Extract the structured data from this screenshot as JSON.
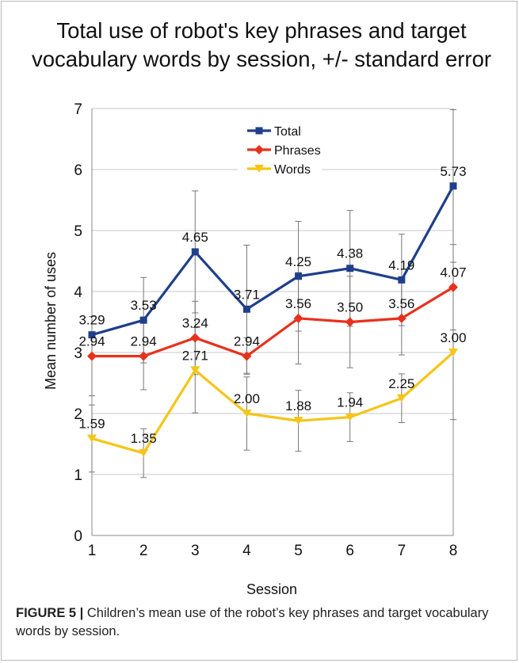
{
  "chart_data": {
    "type": "line",
    "title_lines": [
      "Total use of robot's key phrases and target",
      "vocabulary words by session, +/- standard error"
    ],
    "xlabel": "Session",
    "ylabel": "Mean number of uses",
    "x": [
      1,
      2,
      3,
      4,
      5,
      6,
      7,
      8
    ],
    "ylim": [
      0,
      7
    ],
    "yticks": [
      0,
      1,
      2,
      3,
      4,
      5,
      6,
      7
    ],
    "grid": true,
    "legend_position": "top-center",
    "series": [
      {
        "name": "Total",
        "color": "#1f3f8a",
        "marker": "square",
        "values": [
          3.29,
          3.53,
          4.65,
          3.71,
          4.25,
          4.38,
          4.19,
          5.73
        ],
        "labels": [
          "3.29",
          "3.53",
          "4.65",
          "3.71",
          "4.25",
          "4.38",
          "4.19",
          "5.73"
        ],
        "error": [
          null,
          0.7,
          1.0,
          1.05,
          0.9,
          0.95,
          0.75,
          1.25
        ]
      },
      {
        "name": "Phrases",
        "color": "#e8311d",
        "marker": "diamond",
        "values": [
          2.94,
          2.94,
          3.24,
          2.94,
          3.56,
          3.5,
          3.56,
          4.07
        ],
        "labels": [
          "2.94",
          "2.94",
          "3.24",
          "2.94",
          "3.56",
          "3.50",
          "3.56",
          "4.07"
        ],
        "error": [
          0.65,
          0.55,
          0.6,
          0.3,
          0.75,
          0.75,
          0.6,
          0.7
        ]
      },
      {
        "name": "Words",
        "color": "#f5c518",
        "marker": "triangle",
        "values": [
          1.59,
          1.35,
          2.71,
          2.0,
          1.88,
          1.94,
          2.25,
          3.0
        ],
        "labels": [
          "1.59",
          "1.35",
          "2.71",
          "2.00",
          "1.88",
          "1.94",
          "2.25",
          "3.00"
        ],
        "error": [
          0.55,
          0.4,
          0.7,
          0.6,
          0.5,
          0.4,
          0.4,
          1.1
        ]
      }
    ]
  },
  "caption": {
    "label": "FIGURE 5 |",
    "text": " Children’s mean use of the robot’s key phrases and target vocabulary words by session."
  }
}
